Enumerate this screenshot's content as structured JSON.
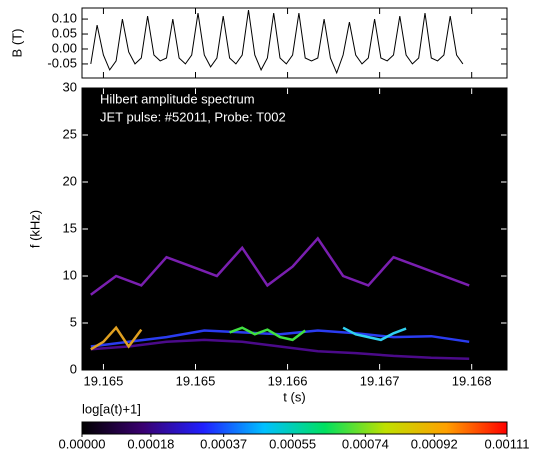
{
  "chart_data": [
    {
      "type": "line",
      "ylabel": "B (T)",
      "color": "#000000",
      "x": [
        19.1645,
        19.16455,
        19.1646,
        19.16465,
        19.1647,
        19.16475,
        19.1648,
        19.16485,
        19.1649,
        19.16495,
        19.165,
        19.16505,
        19.1651,
        19.16515,
        19.1652,
        19.16525,
        19.1653,
        19.16535,
        19.1654,
        19.16545,
        19.1655,
        19.16555,
        19.1656,
        19.16565,
        19.1657,
        19.16575,
        19.1658,
        19.16585,
        19.1659,
        19.16595,
        19.166,
        19.16605,
        19.1661,
        19.16615,
        19.1662,
        19.16625,
        19.1663,
        19.16635,
        19.1664,
        19.16645,
        19.1665,
        19.16655,
        19.1666,
        19.16665,
        19.1667,
        19.16675,
        19.1668,
        19.16685,
        19.1669,
        19.16695,
        19.167,
        19.16705,
        19.1671,
        19.16715,
        19.1672,
        19.16725,
        19.1673,
        19.16735,
        19.1674,
        19.16745
      ],
      "values": [
        -0.05,
        0.08,
        -0.02,
        -0.07,
        -0.04,
        0.1,
        -0.01,
        -0.05,
        -0.03,
        0.11,
        -0.02,
        -0.04,
        -0.03,
        0.1,
        -0.03,
        -0.05,
        -0.02,
        0.12,
        -0.02,
        -0.06,
        -0.03,
        0.11,
        -0.03,
        -0.05,
        -0.02,
        0.13,
        -0.02,
        -0.07,
        -0.03,
        0.12,
        -0.03,
        -0.05,
        -0.02,
        0.12,
        -0.03,
        -0.04,
        -0.03,
        0.1,
        -0.03,
        -0.08,
        -0.02,
        0.09,
        -0.02,
        -0.05,
        -0.03,
        0.1,
        -0.03,
        -0.04,
        -0.02,
        0.11,
        -0.02,
        -0.05,
        -0.03,
        0.12,
        -0.03,
        -0.04,
        -0.02,
        0.11,
        -0.02,
        -0.05
      ],
      "xlim": [
        19.16443,
        19.1678
      ],
      "ylim": [
        -0.097,
        0.137
      ],
      "yticks": [
        {
          "value": 0.1,
          "label": "0.10"
        },
        {
          "value": 0.05,
          "label": "0.05"
        },
        {
          "value": 0,
          "label": "0.00"
        },
        {
          "value": -0.05,
          "label": "-0.05"
        }
      ]
    },
    {
      "type": "line",
      "ylabel": "f (kHz)",
      "xlabel": "t (s)",
      "background": "#000000",
      "annotations": [
        "Hilbert amplitude spectrum",
        "JET pulse: #52011, Probe: T002"
      ],
      "xlim": [
        19.16443,
        19.1678
      ],
      "ylim": [
        0,
        30
      ],
      "yticks": [
        0,
        5,
        10,
        15,
        20,
        25,
        30
      ],
      "xticks": [
        {
          "value": 19.1646,
          "label": "19.165"
        },
        {
          "value": 19.16533,
          "label": "19.165"
        },
        {
          "value": 19.16606,
          "label": "19.166"
        },
        {
          "value": 19.16679,
          "label": "19.167"
        },
        {
          "value": 19.16752,
          "label": "19.168"
        }
      ],
      "series": [
        {
          "color": "#7a1fb0",
          "x": [
            19.1645,
            19.1647,
            19.1649,
            19.1651,
            19.1653,
            19.1655,
            19.1657,
            19.1659,
            19.1661,
            19.1663,
            19.1665,
            19.1667,
            19.1669,
            19.1671,
            19.1673,
            19.1675
          ],
          "values": [
            8,
            10,
            9,
            12,
            11,
            10,
            13,
            9,
            11,
            14,
            10,
            9,
            12,
            11,
            10,
            9
          ]
        },
        {
          "color": "#4b0a8a",
          "x": [
            19.1645,
            19.1648,
            19.1651,
            19.1654,
            19.1657,
            19.166,
            19.1663,
            19.1666,
            19.1669,
            19.1672,
            19.1675
          ],
          "values": [
            2.2,
            2.5,
            3,
            3.2,
            3,
            2.5,
            2,
            1.8,
            1.5,
            1.3,
            1.2
          ]
        },
        {
          "color": "#2a3cf0",
          "x": [
            19.1645,
            19.1648,
            19.1651,
            19.1654,
            19.1657,
            19.166,
            19.1663,
            19.1666,
            19.1669,
            19.1672,
            19.1675
          ],
          "values": [
            2.5,
            3,
            3.5,
            4.2,
            4,
            3.8,
            4.2,
            3.9,
            3.5,
            3.6,
            3
          ]
        },
        {
          "color": "#40e040",
          "x": [
            19.1656,
            19.1657,
            19.1658,
            19.1659,
            19.166,
            19.1661,
            19.1662
          ],
          "values": [
            4,
            4.5,
            3.8,
            4.3,
            3.5,
            3.2,
            4.2
          ]
        },
        {
          "color": "#30d0f0",
          "x": [
            19.1665,
            19.1666,
            19.1667,
            19.1668,
            19.1669,
            19.167
          ],
          "values": [
            4.5,
            3.8,
            3.5,
            3.2,
            3.9,
            4.4
          ]
        },
        {
          "color": "#e0a020",
          "x": [
            19.1645,
            19.1646,
            19.1647,
            19.1648,
            19.1649
          ],
          "values": [
            2.2,
            3,
            4.5,
            2.5,
            4.3
          ]
        }
      ]
    },
    {
      "type": "colorbar",
      "title": "log[a(t)+1]",
      "xlim": [
        0,
        0.00111
      ],
      "colors": [
        "#000000",
        "#3a0070",
        "#2020ff",
        "#00c0ff",
        "#00e060",
        "#c0e000",
        "#ffa000",
        "#ff0000"
      ],
      "xticks": [
        {
          "value": 0,
          "label": "0.00000"
        },
        {
          "value": 0.00018,
          "label": "0.00018"
        },
        {
          "value": 0.00037,
          "label": "0.00037"
        },
        {
          "value": 0.00055,
          "label": "0.00055"
        },
        {
          "value": 0.00074,
          "label": "0.00074"
        },
        {
          "value": 0.00092,
          "label": "0.00092"
        },
        {
          "value": 0.00111,
          "label": "0.00111"
        }
      ]
    }
  ]
}
